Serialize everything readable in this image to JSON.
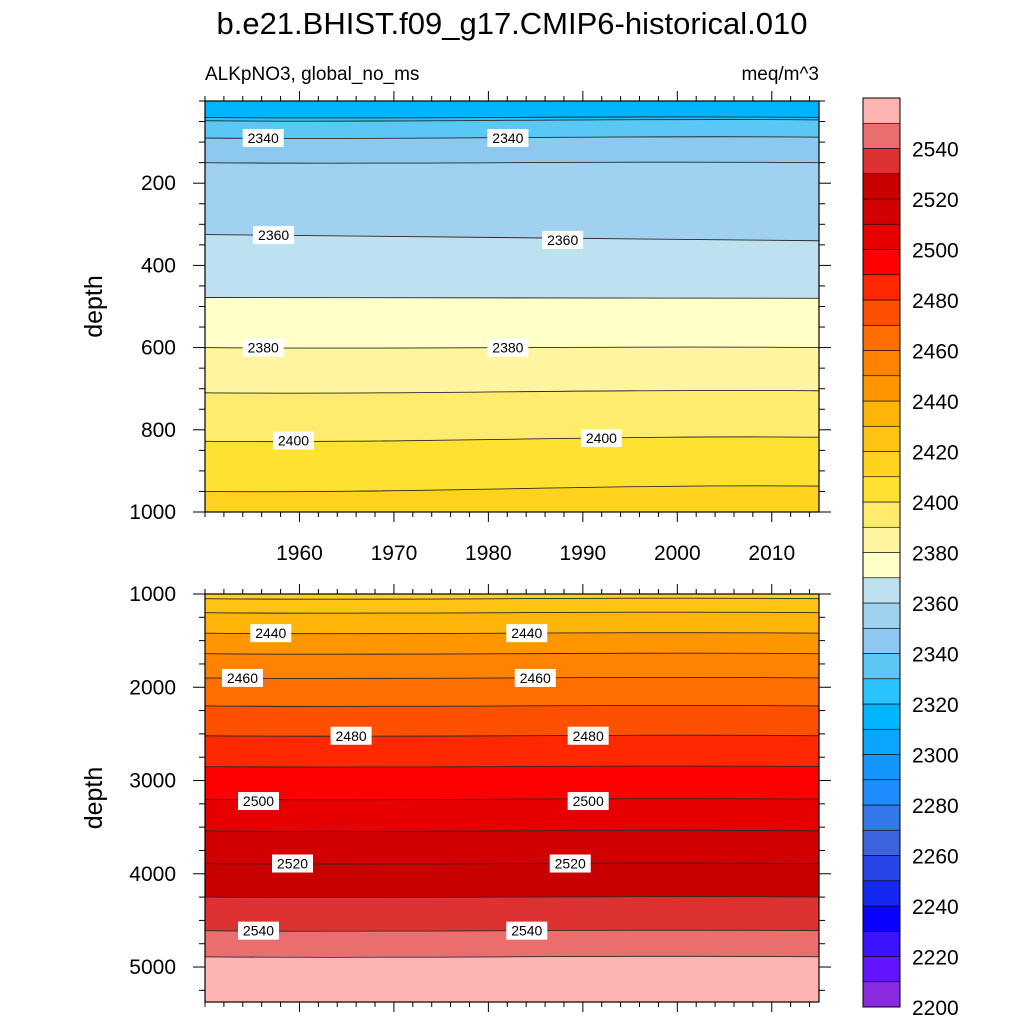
{
  "title": "b.e21.BHIST.f09_g17.CMIP6-historical.010",
  "chart_data": [
    {
      "type": "contour",
      "panel": "upper",
      "variable_label": "ALKpNO3, global_no_ms",
      "units_label": "meq/m^3",
      "ylabel": "depth",
      "xlim": [
        1950,
        2015
      ],
      "ylim": [
        1000,
        0
      ],
      "x_ticks": [
        1960,
        1970,
        1980,
        1990,
        2000,
        2010
      ],
      "y_ticks": [
        200,
        400,
        600,
        800,
        1000
      ],
      "contours": [
        {
          "level": 2320,
          "depth": [
            40,
            40
          ],
          "label": ""
        },
        {
          "level": 2330,
          "depth": [
            48,
            46
          ],
          "label": ""
        },
        {
          "level": 2340,
          "depth": [
            90,
            88
          ],
          "label": "2340"
        },
        {
          "level": 2350,
          "depth": [
            150,
            150
          ],
          "label": ""
        },
        {
          "level": 2360,
          "depth": [
            325,
            340
          ],
          "label": "2360"
        },
        {
          "level": 2370,
          "depth": [
            478,
            480
          ],
          "label": ""
        },
        {
          "level": 2380,
          "depth": [
            600,
            600
          ],
          "label": "2380"
        },
        {
          "level": 2390,
          "depth": [
            710,
            705
          ],
          "label": ""
        },
        {
          "level": 2400,
          "depth": [
            828,
            818
          ],
          "label": "2400"
        },
        {
          "level": 2410,
          "depth": [
            950,
            937
          ],
          "label": ""
        }
      ],
      "contour_labels": [
        {
          "level": 2340,
          "x": 1954.1,
          "depth": 90
        },
        {
          "level": 2340,
          "x": 1980.0,
          "depth": 90
        },
        {
          "level": 2360,
          "x": 1955.2,
          "depth": 326
        },
        {
          "level": 2360,
          "x": 1985.8,
          "depth": 338
        },
        {
          "level": 2380,
          "x": 1954.1,
          "depth": 600
        },
        {
          "level": 2380,
          "x": 1980.0,
          "depth": 600
        },
        {
          "level": 2400,
          "x": 1957.3,
          "depth": 826
        },
        {
          "level": 2400,
          "x": 1989.9,
          "depth": 820
        }
      ]
    },
    {
      "type": "contour",
      "panel": "lower",
      "ylabel": "depth",
      "xlim": [
        1950,
        2015
      ],
      "ylim": [
        5375,
        1000
      ],
      "x_ticks": [
        1960,
        1970,
        1980,
        1990,
        2000,
        2010
      ],
      "y_ticks": [
        1000,
        2000,
        3000,
        4000,
        5000
      ],
      "contours": [
        {
          "level": 2420,
          "depth": [
            1050,
            1050
          ],
          "label": ""
        },
        {
          "level": 2430,
          "depth": [
            1200,
            1200
          ],
          "label": ""
        },
        {
          "level": 2440,
          "depth": [
            1420,
            1420
          ],
          "label": "2440"
        },
        {
          "level": 2450,
          "depth": [
            1640,
            1640
          ],
          "label": ""
        },
        {
          "level": 2460,
          "depth": [
            1900,
            1900
          ],
          "label": "2460"
        },
        {
          "level": 2470,
          "depth": [
            2200,
            2200
          ],
          "label": ""
        },
        {
          "level": 2480,
          "depth": [
            2520,
            2520
          ],
          "label": "2480"
        },
        {
          "level": 2490,
          "depth": [
            2850,
            2850
          ],
          "label": ""
        },
        {
          "level": 2500,
          "depth": [
            3200,
            3200
          ],
          "label": "2500"
        },
        {
          "level": 2510,
          "depth": [
            3540,
            3540
          ],
          "label": ""
        },
        {
          "level": 2520,
          "depth": [
            3890,
            3890
          ],
          "label": "2520"
        },
        {
          "level": 2530,
          "depth": [
            4250,
            4250
          ],
          "label": ""
        },
        {
          "level": 2540,
          "depth": [
            4610,
            4610
          ],
          "label": "2540"
        },
        {
          "level": 2550,
          "depth": [
            4890,
            4890
          ],
          "label": ""
        }
      ],
      "contour_labels": [
        {
          "level": 2440,
          "x": 1954.9,
          "depth": 1420
        },
        {
          "level": 2440,
          "x": 1982.0,
          "depth": 1420
        },
        {
          "level": 2460,
          "x": 1951.9,
          "depth": 1900
        },
        {
          "level": 2460,
          "x": 1982.9,
          "depth": 1900
        },
        {
          "level": 2480,
          "x": 1963.4,
          "depth": 2520
        },
        {
          "level": 2480,
          "x": 1988.5,
          "depth": 2520
        },
        {
          "level": 2500,
          "x": 1953.6,
          "depth": 3220
        },
        {
          "level": 2500,
          "x": 1988.5,
          "depth": 3220
        },
        {
          "level": 2520,
          "x": 1957.2,
          "depth": 3890
        },
        {
          "level": 2520,
          "x": 1986.6,
          "depth": 3890
        },
        {
          "level": 2540,
          "x": 1953.6,
          "depth": 4610
        },
        {
          "level": 2540,
          "x": 1982.0,
          "depth": 4610
        }
      ]
    }
  ],
  "colorbar": {
    "levels": [
      2200,
      2210,
      2220,
      2230,
      2240,
      2250,
      2260,
      2270,
      2280,
      2290,
      2300,
      2310,
      2320,
      2330,
      2340,
      2350,
      2360,
      2370,
      2380,
      2390,
      2400,
      2410,
      2420,
      2430,
      2440,
      2450,
      2460,
      2470,
      2480,
      2490,
      2500,
      2510,
      2520,
      2530,
      2540,
      2550
    ],
    "tick_labels": [
      2200,
      2220,
      2240,
      2260,
      2280,
      2300,
      2320,
      2340,
      2360,
      2380,
      2400,
      2420,
      2440,
      2460,
      2480,
      2500,
      2520,
      2540
    ],
    "colors": [
      "#8a2be2",
      "#6414ff",
      "#3c14ff",
      "#0a00ff",
      "#1428f0",
      "#2846e6",
      "#3c64dc",
      "#3278e6",
      "#1e8cff",
      "#1496ff",
      "#0aa5ff",
      "#00b4ff",
      "#28c3ff",
      "#5ac8f5",
      "#8cc8f0",
      "#a0d2f0",
      "#bee1f0",
      "#ffffc8",
      "#fff5a0",
      "#ffeb6e",
      "#ffe132",
      "#ffd21e",
      "#ffc314",
      "#ffb40a",
      "#ff9600",
      "#ff8200",
      "#ff6e00",
      "#ff5000",
      "#ff2800",
      "#ff0000",
      "#e60000",
      "#d20000",
      "#c80000",
      "#dc3232",
      "#eb6e6e",
      "#ffb4b4"
    ]
  }
}
